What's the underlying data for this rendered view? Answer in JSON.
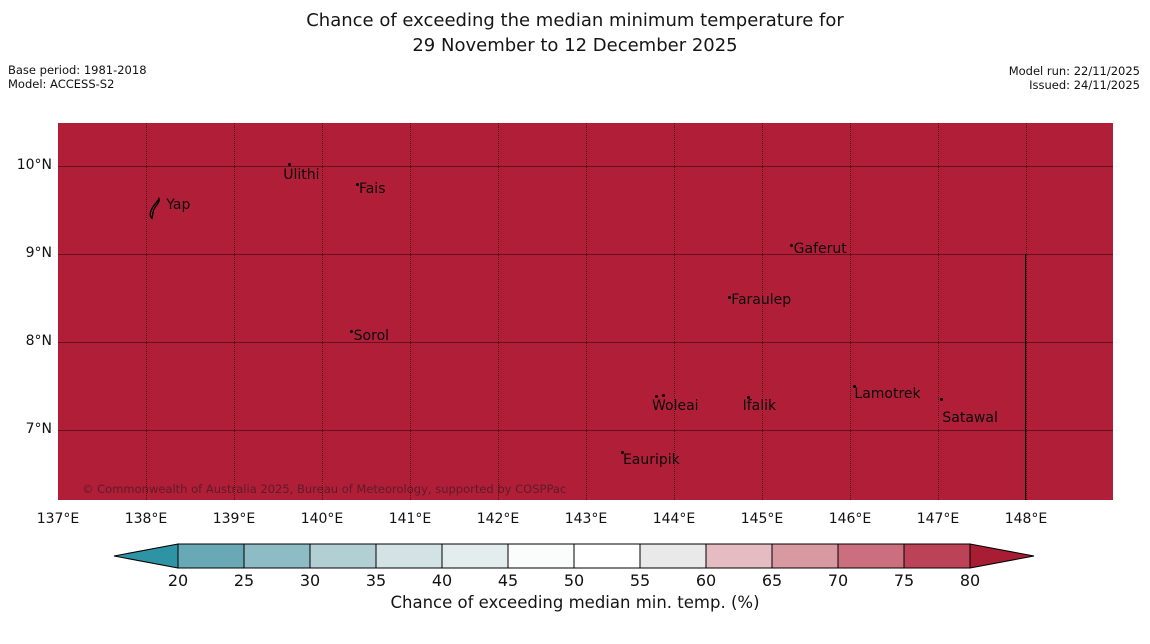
{
  "title": {
    "line1": "Chance of exceeding the median minimum temperature for",
    "line2": "29 November to 12 December 2025"
  },
  "meta": {
    "base_period": "Base period: 1981-2018",
    "model": "Model: ACCESS-S2",
    "model_run": "Model run: 22/11/2025",
    "issued": "Issued: 24/11/2025"
  },
  "copyright": "© Commonwealth of Australia 2025, Bureau of Meteorology, supported by COSPPac",
  "chart_data": {
    "type": "heatmap",
    "title": "Chance of exceeding the median minimum temperature for 29 November to 12 December 2025",
    "field": "Chance of exceeding median min. temp. (%)",
    "uniform_value": "entire displayed domain shaded in the > 80% category",
    "map_fill_color": "#b11e38",
    "lon_range": [
      137,
      148.99
    ],
    "lat_range": [
      6.2,
      10.49
    ],
    "lon_tick_values": [
      137,
      138,
      139,
      140,
      141,
      142,
      143,
      144,
      145,
      146,
      147,
      148
    ],
    "lon_tick_labels": [
      "137°E",
      "138°E",
      "139°E",
      "140°E",
      "141°E",
      "142°E",
      "143°E",
      "144°E",
      "145°E",
      "146°E",
      "147°E",
      "148°E"
    ],
    "lat_tick_values": [
      10,
      9,
      8,
      7
    ],
    "lat_tick_labels": [
      "10°N",
      "9°N",
      "8°N",
      "7°N"
    ],
    "grid": {
      "latitude_lines": "solid",
      "longitude_lines": "dotted"
    },
    "boundary_line": {
      "lon": 148,
      "lat_from": 9,
      "lat_to": 6.2,
      "color": "#000000"
    },
    "places": [
      {
        "name": "Yap",
        "marker": "island",
        "marker_lon": 138.04,
        "marker_lat": 9.63,
        "label_lon": 138.23,
        "label_lat": 9.65
      },
      {
        "name": "Ulithi",
        "marker": "dot",
        "marker_lon": 139.61,
        "marker_lat": 10.03,
        "label_lon": 139.56,
        "label_lat": 9.99
      },
      {
        "name": "Fais",
        "marker": "dot",
        "marker_lon": 140.39,
        "marker_lat": 9.81,
        "label_lon": 140.42,
        "label_lat": 9.83
      },
      {
        "name": "Gaferut",
        "marker": "dot",
        "marker_lon": 145.32,
        "marker_lat": 9.11,
        "label_lon": 145.36,
        "label_lat": 9.15
      },
      {
        "name": "Faraulep",
        "marker": "dot",
        "marker_lon": 144.61,
        "marker_lat": 8.52,
        "label_lon": 144.65,
        "label_lat": 8.57
      },
      {
        "name": "Sorol",
        "marker": "dot",
        "marker_lon": 140.32,
        "marker_lat": 8.14,
        "label_lon": 140.36,
        "label_lat": 8.16
      },
      {
        "name": "Woleai",
        "marker": "dot",
        "marker_lon": 143.78,
        "marker_lat": 7.4,
        "label_lon": 143.75,
        "label_lat": 7.36,
        "extra_dots": [
          [
            143.86,
            7.41
          ]
        ]
      },
      {
        "name": "Ifalik",
        "marker": "dot",
        "marker_lon": 144.83,
        "marker_lat": 7.39,
        "label_lon": 144.78,
        "label_lat": 7.36
      },
      {
        "name": "Lamotrek",
        "marker": "dot",
        "marker_lon": 146.03,
        "marker_lat": 7.51,
        "label_lon": 146.05,
        "label_lat": 7.5
      },
      {
        "name": "Satawal",
        "marker": "dot",
        "marker_lon": 147.02,
        "marker_lat": 7.36,
        "label_lon": 147.05,
        "label_lat": 7.23
      },
      {
        "name": "Eauripik",
        "marker": "dot",
        "marker_lon": 143.4,
        "marker_lat": 6.76,
        "label_lon": 143.42,
        "label_lat": 6.75
      }
    ],
    "colorbar": {
      "label": "Chance of exceeding median min. temp. (%)",
      "ticks": [
        20,
        25,
        30,
        35,
        40,
        45,
        50,
        55,
        60,
        65,
        70,
        75,
        80
      ],
      "under_color": "#2e93a4",
      "over_color": "#a81c34",
      "segment_colors": [
        "#69a9b5",
        "#8dbcc5",
        "#b2cfd4",
        "#d3e2e5",
        "#e4edee",
        "#fbfdfd",
        "#ffffff",
        "#e9e9e9",
        "#e4bcc1",
        "#d999a1",
        "#cb6f7e",
        "#bc4357"
      ],
      "orientation": "horizontal",
      "extend": "both"
    }
  }
}
